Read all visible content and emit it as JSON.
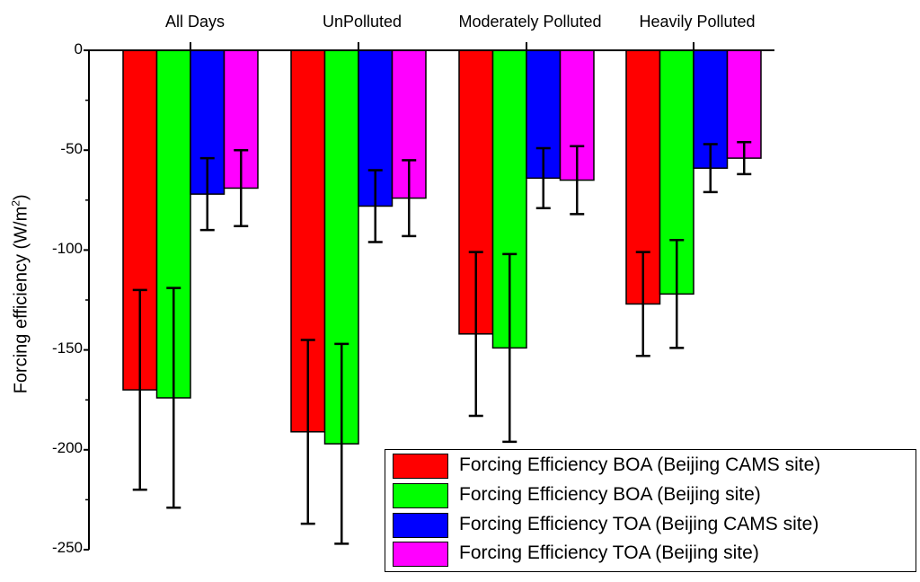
{
  "chart_data": {
    "type": "bar",
    "title": "",
    "xlabel": "",
    "ylabel": "Forcing efficiency (W/m",
    "ylabel_sup": "2",
    "ylabel_close": ")",
    "ylim": [
      -250,
      0
    ],
    "yticks": [
      0,
      -50,
      -100,
      -150,
      -200,
      -250
    ],
    "ytick_labels": [
      "0",
      "-50",
      "-100",
      "-150",
      "-200",
      "-250"
    ],
    "categories": [
      "All Days",
      "UnPolluted",
      "Moderately Polluted",
      "Heavily Polluted"
    ],
    "series": [
      {
        "name": "Forcing Efficiency BOA (Beijing CAMS site)",
        "color": "#ff0000",
        "values": [
          -170,
          -191,
          -142,
          -127
        ],
        "errors": [
          50,
          46,
          41,
          26
        ]
      },
      {
        "name": "Forcing Efficiency BOA (Beijing site)",
        "color": "#00ff00",
        "values": [
          -174,
          -197,
          -149,
          -122
        ],
        "errors": [
          55,
          50,
          47,
          27
        ]
      },
      {
        "name": "Forcing Efficiency TOA (Beijing CAMS site)",
        "color": "#0000ff",
        "values": [
          -72,
          -78,
          -64,
          -59
        ],
        "errors": [
          18,
          18,
          15,
          12
        ]
      },
      {
        "name": "Forcing Efficiency TOA (Beijing site)",
        "color": "#ff00ff",
        "values": [
          -69,
          -74,
          -65,
          -54
        ],
        "errors": [
          19,
          19,
          17,
          8
        ]
      }
    ],
    "legend_position": "bottom-right",
    "grid": false
  }
}
